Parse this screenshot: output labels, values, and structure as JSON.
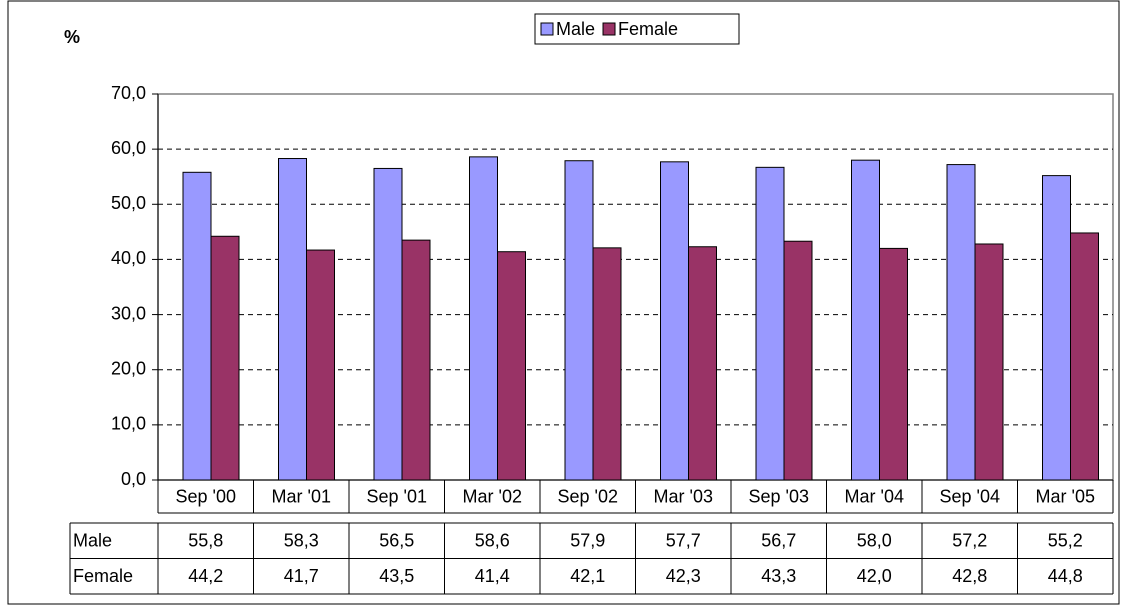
{
  "chart_data": {
    "type": "bar",
    "y_label": "%",
    "categories": [
      "Sep '00",
      "Mar '01",
      "Sep '01",
      "Mar '02",
      "Sep '02",
      "Mar '03",
      "Sep '03",
      "Mar '04",
      "Sep '04",
      "Mar '05"
    ],
    "series": [
      {
        "name": "Male",
        "color": "#9999ff",
        "values": [
          55.8,
          58.3,
          56.5,
          58.6,
          57.9,
          57.7,
          56.7,
          58.0,
          57.2,
          55.2
        ],
        "value_labels": [
          "55,8",
          "58,3",
          "56,5",
          "58,6",
          "57,9",
          "57,7",
          "56,7",
          "58,0",
          "57,2",
          "55,2"
        ]
      },
      {
        "name": "Female",
        "color": "#993366",
        "values": [
          44.2,
          41.7,
          43.5,
          41.4,
          42.1,
          42.3,
          43.3,
          42.0,
          42.8,
          44.8
        ],
        "value_labels": [
          "44,2",
          "41,7",
          "43,5",
          "41,4",
          "42,1",
          "42,3",
          "43,3",
          "42,0",
          "42,8",
          "44,8"
        ]
      }
    ],
    "ylim": [
      0,
      70
    ],
    "yticks": [
      {
        "value": 0,
        "label": "0,0"
      },
      {
        "value": 10,
        "label": "10,0"
      },
      {
        "value": 20,
        "label": "20,0"
      },
      {
        "value": 30,
        "label": "30,0"
      },
      {
        "value": 40,
        "label": "40,0"
      },
      {
        "value": 50,
        "label": "50,0"
      },
      {
        "value": 60,
        "label": "60,0"
      },
      {
        "value": 70,
        "label": "70,0"
      }
    ],
    "grid": true,
    "legend": "top"
  }
}
